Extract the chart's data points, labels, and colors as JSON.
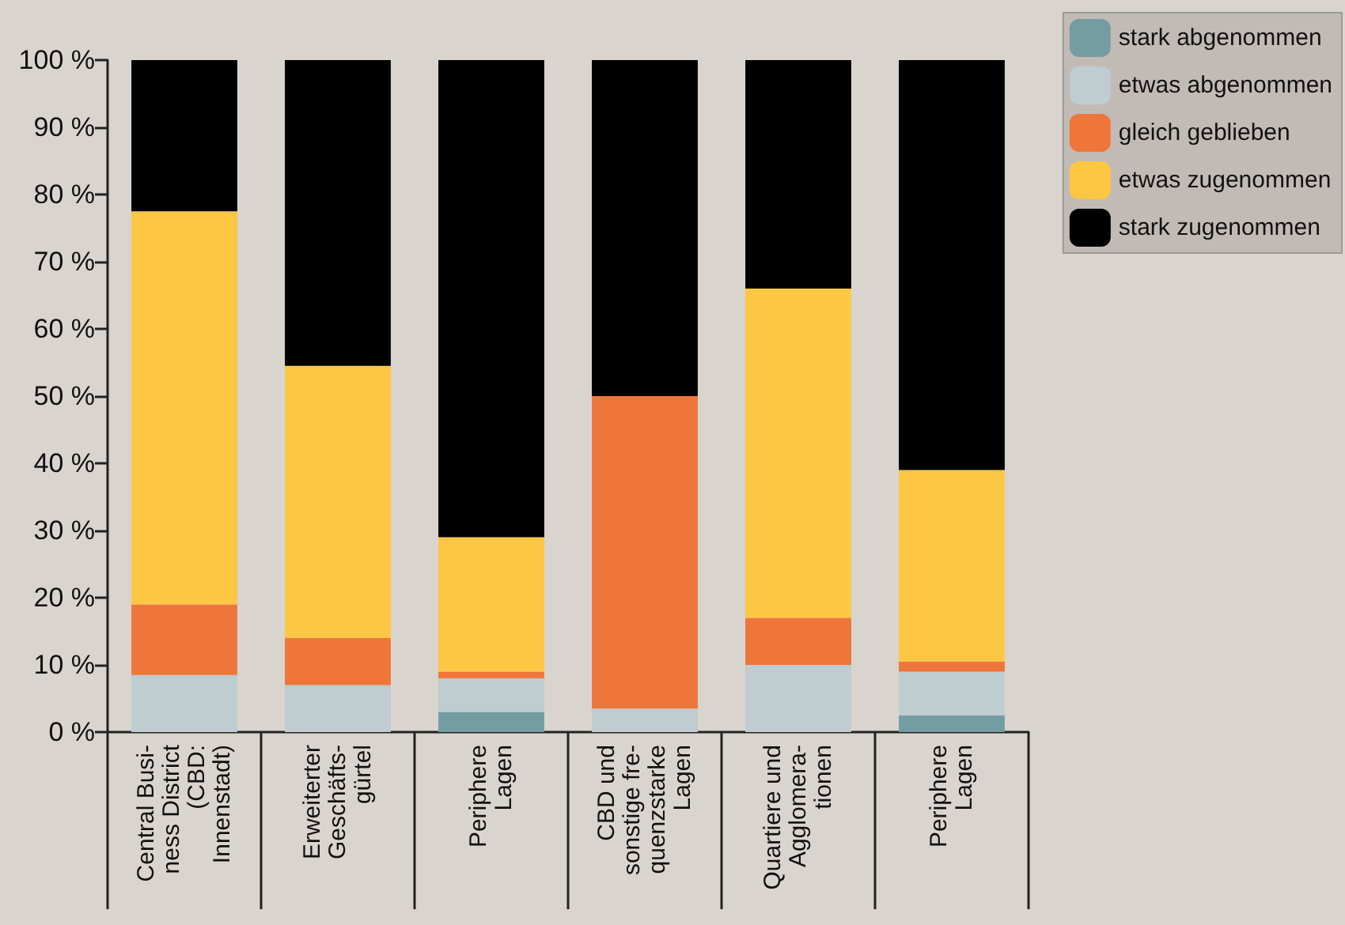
{
  "chart_data": {
    "type": "bar",
    "stacked": true,
    "categories": [
      "Central Busi-\nness District\n(CBD:\nInnenstadt)",
      "Erweiterter\nGeschäfts-\ngürtel",
      "Periphere\nLagen",
      "CBD und\nsonstige fre-\nquenzstarke\nLagen",
      "Quartiere und\nAgglomera-\ntionen",
      "Periphere\nLagen"
    ],
    "series": [
      {
        "name": "stark abgenommen",
        "color": "#749ca3",
        "values": [
          0,
          0,
          3,
          0,
          0,
          2.5
        ]
      },
      {
        "name": "etwas abgenommen",
        "color": "#bfccd0",
        "values": [
          8.5,
          7,
          5,
          3.5,
          10,
          6.5
        ]
      },
      {
        "name": "gleich geblieben",
        "color": "#ee763b",
        "values": [
          10.5,
          7,
          1,
          46.5,
          7,
          1.5
        ]
      },
      {
        "name": "etwas zugenommen",
        "color": "#fdc744",
        "values": [
          58.5,
          40.5,
          20,
          0,
          49,
          28.5
        ]
      },
      {
        "name": "stark zugenommen",
        "color": "#000000",
        "values": [
          22.5,
          45.5,
          71,
          50,
          34,
          61
        ]
      }
    ],
    "ylim": [
      0,
      100
    ],
    "yticks": [
      {
        "value": 0,
        "label": "0 %"
      },
      {
        "value": 10,
        "label": "10 %"
      },
      {
        "value": 20,
        "label": "20 %"
      },
      {
        "value": 30,
        "label": "30 %"
      },
      {
        "value": 40,
        "label": "40 %"
      },
      {
        "value": 50,
        "label": "50 %"
      },
      {
        "value": 60,
        "label": "60 %"
      },
      {
        "value": 70,
        "label": "70 %"
      },
      {
        "value": 80,
        "label": "80 %"
      },
      {
        "value": 90,
        "label": "90 %"
      },
      {
        "value": 100,
        "label": "100 %"
      }
    ],
    "grid": false,
    "legend": "top right"
  }
}
